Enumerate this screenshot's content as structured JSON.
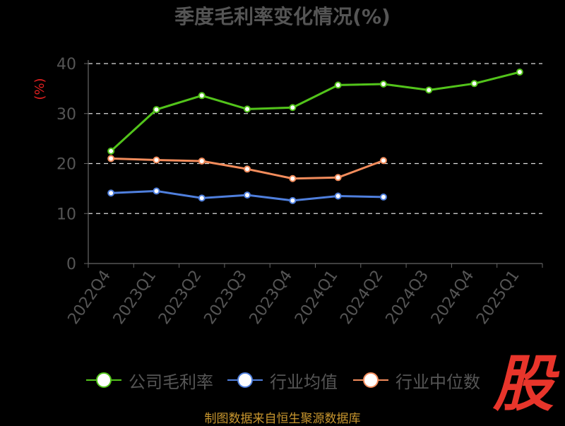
{
  "chart_data": {
    "type": "line",
    "title": "季度毛利率变化情况(%)",
    "ylabel": "(%)",
    "categories": [
      "2022Q4",
      "2023Q1",
      "2023Q2",
      "2023Q3",
      "2023Q4",
      "2024Q1",
      "2024Q2",
      "2024Q3",
      "2024Q4",
      "2025Q1"
    ],
    "ylim": [
      0,
      40
    ],
    "yticks": [
      0,
      10,
      20,
      30,
      40
    ],
    "grid": true,
    "legend": "bottom",
    "series": [
      {
        "name": "公司毛利率",
        "color": "#52c41a",
        "values": [
          22.5,
          30.8,
          33.6,
          30.9,
          31.2,
          35.7,
          35.9,
          34.7,
          36.0,
          38.3
        ]
      },
      {
        "name": "行业均值",
        "color": "#4f7fdd",
        "values": [
          14.1,
          14.5,
          13.1,
          13.7,
          12.6,
          13.5,
          13.3,
          null,
          null,
          null
        ]
      },
      {
        "name": "行业中位数",
        "color": "#f28c5c",
        "values": [
          21.0,
          20.7,
          20.5,
          18.9,
          17.0,
          17.2,
          20.6,
          null,
          null,
          null
        ]
      }
    ]
  },
  "footer": {
    "source": "制图数据来自恒生聚源数据库"
  },
  "logo": {
    "text": "股"
  }
}
